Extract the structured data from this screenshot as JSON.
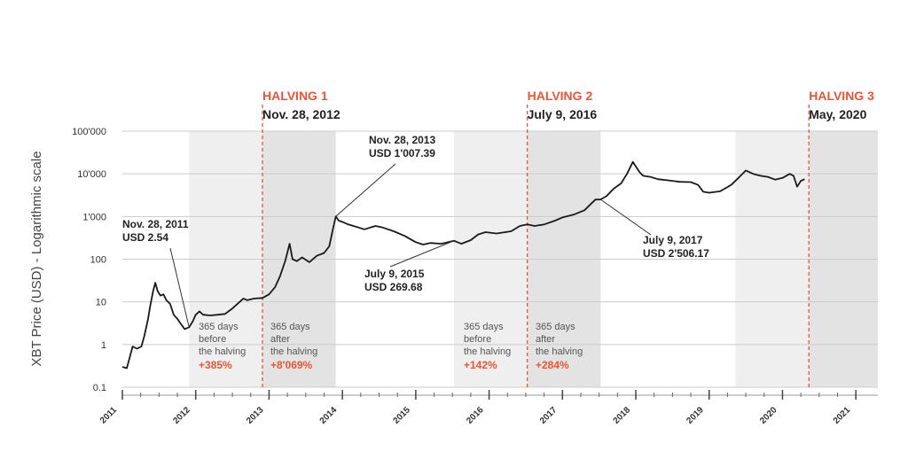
{
  "chart_data": {
    "type": "line",
    "ylabel": "XBT Price (USD) - Logarithmic scale",
    "yscale": "log",
    "ylim": [
      0.1,
      100000
    ],
    "xlim": [
      2011.0,
      2021.3
    ],
    "y_ticks": [
      {
        "value": 100000,
        "label": "100'000"
      },
      {
        "value": 10000,
        "label": "10'000"
      },
      {
        "value": 1000,
        "label": "1'000"
      },
      {
        "value": 100,
        "label": "100"
      },
      {
        "value": 10,
        "label": "10"
      },
      {
        "value": 1,
        "label": "1"
      },
      {
        "value": 0.1,
        "label": "0.1"
      }
    ],
    "x_ticks": [
      {
        "value": 2011,
        "label": "2011"
      },
      {
        "value": 2012,
        "label": "2012"
      },
      {
        "value": 2013,
        "label": "2013"
      },
      {
        "value": 2014,
        "label": "2014"
      },
      {
        "value": 2015,
        "label": "2015"
      },
      {
        "value": 2016,
        "label": "2016"
      },
      {
        "value": 2017,
        "label": "2017"
      },
      {
        "value": 2018,
        "label": "2018"
      },
      {
        "value": 2019,
        "label": "2019"
      },
      {
        "value": 2020,
        "label": "2020"
      },
      {
        "value": 2021,
        "label": "2021"
      }
    ],
    "halvings": [
      {
        "title": "HALVING 1",
        "date": "Nov. 28, 2012",
        "x": 2012.91
      },
      {
        "title": "HALVING 2",
        "date": "July 9, 2016",
        "x": 2016.52
      },
      {
        "title": "HALVING 3",
        "date": "May, 2020",
        "x": 2020.36
      }
    ],
    "shaded_bands": [
      {
        "from": 2011.91,
        "to": 2012.91,
        "shade": "#efefef"
      },
      {
        "from": 2012.91,
        "to": 2013.91,
        "shade": "#e3e3e3"
      },
      {
        "from": 2015.52,
        "to": 2016.52,
        "shade": "#efefef"
      },
      {
        "from": 2016.52,
        "to": 2017.52,
        "shade": "#e3e3e3"
      },
      {
        "from": 2019.36,
        "to": 2020.36,
        "shade": "#efefef"
      },
      {
        "from": 2020.36,
        "to": 2021.3,
        "shade": "#e3e3e3"
      }
    ],
    "series": [
      {
        "name": "XBT Price",
        "points": [
          [
            2011.0,
            0.3
          ],
          [
            2011.06,
            0.28
          ],
          [
            2011.1,
            0.5
          ],
          [
            2011.14,
            0.9
          ],
          [
            2011.2,
            0.8
          ],
          [
            2011.26,
            0.9
          ],
          [
            2011.3,
            1.6
          ],
          [
            2011.35,
            4
          ],
          [
            2011.38,
            8
          ],
          [
            2011.42,
            18
          ],
          [
            2011.45,
            28
          ],
          [
            2011.48,
            18
          ],
          [
            2011.52,
            14
          ],
          [
            2011.56,
            15
          ],
          [
            2011.6,
            11
          ],
          [
            2011.65,
            9
          ],
          [
            2011.7,
            5
          ],
          [
            2011.75,
            4
          ],
          [
            2011.8,
            3
          ],
          [
            2011.85,
            2.3
          ],
          [
            2011.91,
            2.54
          ],
          [
            2011.96,
            3.5
          ],
          [
            2012.0,
            5
          ],
          [
            2012.05,
            6
          ],
          [
            2012.1,
            5
          ],
          [
            2012.2,
            4.8
          ],
          [
            2012.3,
            5
          ],
          [
            2012.4,
            5.2
          ],
          [
            2012.5,
            7
          ],
          [
            2012.6,
            10
          ],
          [
            2012.65,
            12
          ],
          [
            2012.7,
            11
          ],
          [
            2012.8,
            12
          ],
          [
            2012.91,
            12.3
          ],
          [
            2013.0,
            15
          ],
          [
            2013.08,
            22
          ],
          [
            2013.15,
            40
          ],
          [
            2013.22,
            90
          ],
          [
            2013.28,
            230
          ],
          [
            2013.32,
            100
          ],
          [
            2013.38,
            90
          ],
          [
            2013.45,
            110
          ],
          [
            2013.55,
            85
          ],
          [
            2013.65,
            120
          ],
          [
            2013.75,
            140
          ],
          [
            2013.82,
            200
          ],
          [
            2013.87,
            500
          ],
          [
            2013.91,
            1007.39
          ],
          [
            2013.95,
            800
          ],
          [
            2014.0,
            750
          ],
          [
            2014.08,
            650
          ],
          [
            2014.15,
            600
          ],
          [
            2014.3,
            500
          ],
          [
            2014.45,
            600
          ],
          [
            2014.55,
            550
          ],
          [
            2014.7,
            450
          ],
          [
            2014.85,
            350
          ],
          [
            2015.0,
            250
          ],
          [
            2015.1,
            220
          ],
          [
            2015.2,
            240
          ],
          [
            2015.35,
            230
          ],
          [
            2015.52,
            269.68
          ],
          [
            2015.62,
            230
          ],
          [
            2015.75,
            280
          ],
          [
            2015.85,
            380
          ],
          [
            2015.95,
            430
          ],
          [
            2016.1,
            400
          ],
          [
            2016.3,
            450
          ],
          [
            2016.42,
            600
          ],
          [
            2016.52,
            650
          ],
          [
            2016.62,
            600
          ],
          [
            2016.75,
            650
          ],
          [
            2016.9,
            800
          ],
          [
            2017.0,
            950
          ],
          [
            2017.15,
            1100
          ],
          [
            2017.3,
            1400
          ],
          [
            2017.45,
            2500
          ],
          [
            2017.52,
            2506.17
          ],
          [
            2017.6,
            3000
          ],
          [
            2017.7,
            4500
          ],
          [
            2017.8,
            6000
          ],
          [
            2017.88,
            10000
          ],
          [
            2017.96,
            19000
          ],
          [
            2018.0,
            15000
          ],
          [
            2018.05,
            11000
          ],
          [
            2018.1,
            9000
          ],
          [
            2018.2,
            8500
          ],
          [
            2018.3,
            7500
          ],
          [
            2018.45,
            7000
          ],
          [
            2018.6,
            6500
          ],
          [
            2018.75,
            6400
          ],
          [
            2018.85,
            5500
          ],
          [
            2018.92,
            3800
          ],
          [
            2019.0,
            3600
          ],
          [
            2019.15,
            3900
          ],
          [
            2019.3,
            5500
          ],
          [
            2019.4,
            8000
          ],
          [
            2019.5,
            12000
          ],
          [
            2019.6,
            10000
          ],
          [
            2019.7,
            9000
          ],
          [
            2019.8,
            8500
          ],
          [
            2019.9,
            7300
          ],
          [
            2020.0,
            8000
          ],
          [
            2020.1,
            10000
          ],
          [
            2020.15,
            9000
          ],
          [
            2020.2,
            5000
          ],
          [
            2020.25,
            6800
          ],
          [
            2020.3,
            7500
          ]
        ]
      }
    ],
    "annotations": [
      {
        "line1": "Nov. 28, 2011",
        "line2": "USD 2.54",
        "x": 2011.91,
        "y": 2.54
      },
      {
        "line1": "Nov. 28, 2013",
        "line2": "USD 1'007.39",
        "x": 2013.91,
        "y": 1007.39
      },
      {
        "line1": "July 9, 2015",
        "line2": "USD 269.68",
        "x": 2015.52,
        "y": 269.68
      },
      {
        "line1": "July 9, 2017",
        "line2": "USD 2'506.17",
        "x": 2017.52,
        "y": 2506.17
      }
    ],
    "period_labels": [
      {
        "l1": "365 days",
        "l2": "before",
        "l3": "the halving",
        "pct": "+385%"
      },
      {
        "l1": "365 days",
        "l2": "after",
        "l3": "the halving",
        "pct": "+8'069%"
      },
      {
        "l1": "365 days",
        "l2": "before",
        "l3": "the halving",
        "pct": "+142%"
      },
      {
        "l1": "365 days",
        "l2": "after",
        "l3": "the halving",
        "pct": "+284%"
      }
    ],
    "colors": {
      "halving": "#e8553a",
      "line": "#1a1a1a",
      "grid": "#cccccc"
    }
  }
}
